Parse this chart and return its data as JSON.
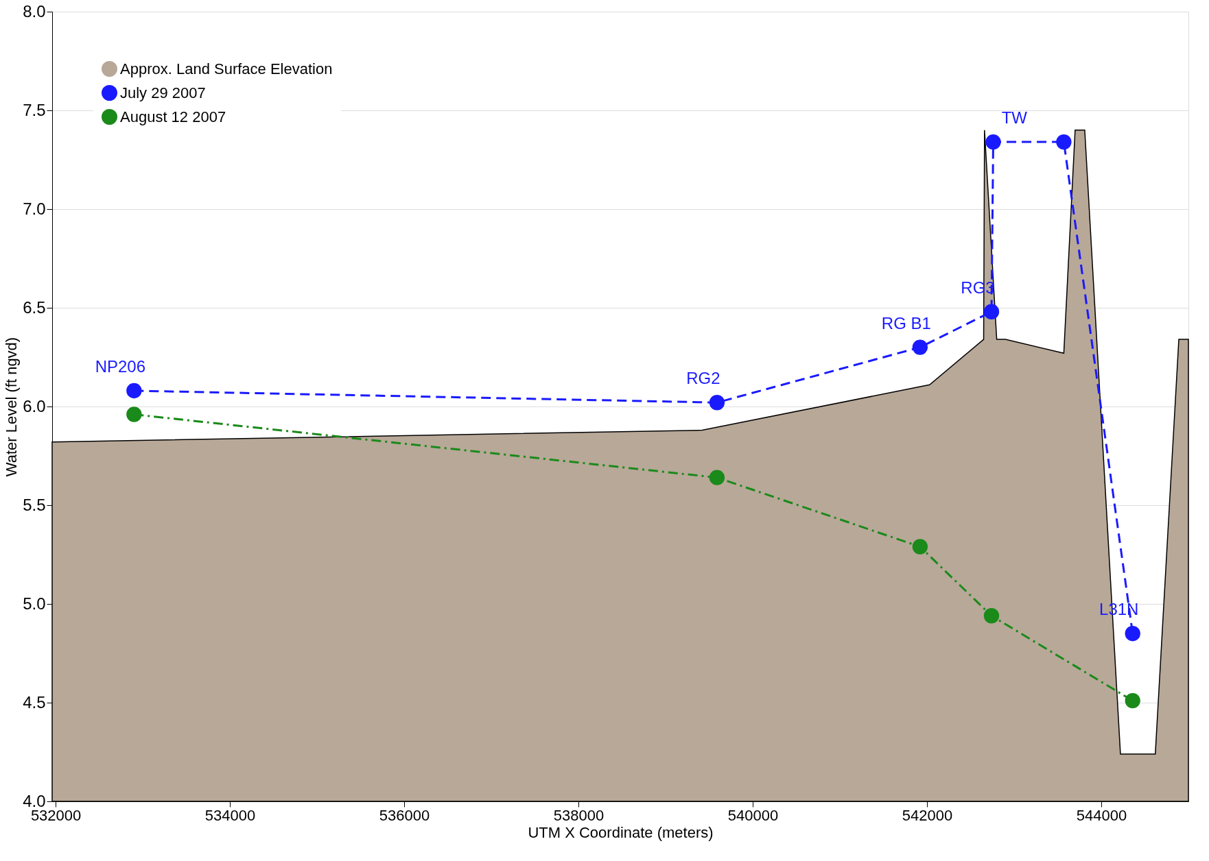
{
  "chart_data": {
    "type": "line",
    "xlabel": "UTM X Coordinate (meters)",
    "ylabel": "Water Level (ft ngvd)",
    "xlim": [
      531960,
      545000
    ],
    "ylim": [
      4.0,
      8.0
    ],
    "xticks": [
      532000,
      534000,
      536000,
      538000,
      540000,
      542000,
      544000
    ],
    "yticks": [
      {
        "value": 4,
        "label": "4.0"
      },
      4.5,
      {
        "value": 5,
        "label": "5.0"
      },
      5.5,
      {
        "value": 6,
        "label": "6.0"
      },
      6.5,
      {
        "value": 7,
        "label": "7.0"
      },
      7.5,
      {
        "value": 8,
        "label": "8.0"
      }
    ],
    "grid": "y",
    "legend": "top left",
    "series": [
      {
        "type": "area",
        "name": "Approx. Land Surface Elevation",
        "color": "#b8a898",
        "x": [
          531960,
          539420,
          542030,
          542650,
          542660,
          542800,
          542900,
          543570,
          543700,
          543810,
          544220,
          544620,
          544890,
          545000
        ],
        "values": [
          5.82,
          5.88,
          6.11,
          6.34,
          7.4,
          6.34,
          6.34,
          6.27,
          7.4,
          7.4,
          4.24,
          4.24,
          6.34,
          6.34
        ]
      },
      {
        "name": "July 29 2007",
        "color": "#1a1aff",
        "line_style": "dashed",
        "marker": "circle",
        "x": [
          532900,
          539590,
          541920,
          542740,
          542760,
          543570,
          544360
        ],
        "values": [
          6.08,
          6.02,
          6.3,
          6.48,
          7.34,
          7.34,
          4.85
        ]
      },
      {
        "name": "August 12 2007",
        "color": "#1a8a1a",
        "line_style": "dashdot",
        "marker": "circle",
        "x": [
          532900,
          539590,
          541920,
          542740,
          544360
        ],
        "values": [
          5.96,
          5.64,
          5.29,
          4.94,
          4.51
        ]
      }
    ],
    "annotations": [
      {
        "text": "NP206",
        "x": 532900,
        "y": 6.08
      },
      {
        "text": "RG2",
        "x": 539590,
        "y": 6.02
      },
      {
        "text": "RG B1",
        "x": 541920,
        "y": 6.3
      },
      {
        "text": "RG3",
        "x": 542740,
        "y": 6.48
      },
      {
        "text": "TW",
        "x": 543160,
        "y": 7.34
      },
      {
        "text": "L31N",
        "x": 544360,
        "y": 4.85
      }
    ]
  }
}
